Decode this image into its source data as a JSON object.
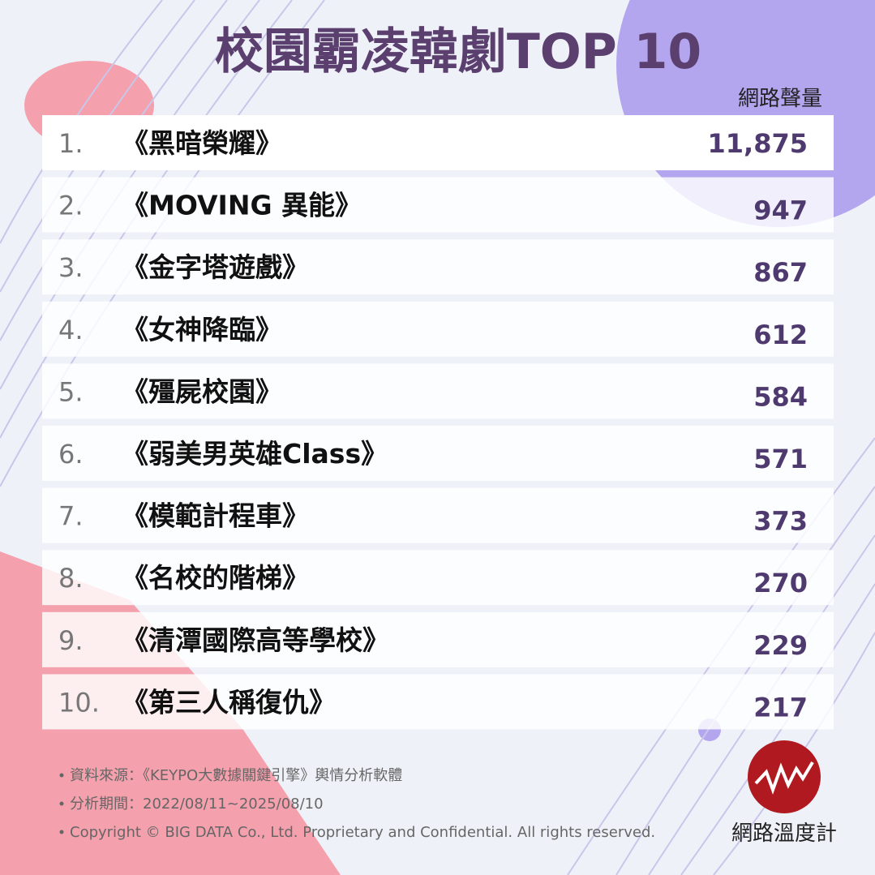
{
  "header": {
    "title": "校園霸凌韓劇TOP 10",
    "value_label": "網路聲量"
  },
  "table": {
    "rows": [
      [
        "1.",
        "《黑暗榮耀》",
        "11,875"
      ],
      [
        "2.",
        "《MOVING 異能》",
        "947"
      ],
      [
        "3.",
        "《金字塔遊戲》",
        "867"
      ],
      [
        "4.",
        "《女神降臨》",
        "612"
      ],
      [
        "5.",
        "《殭屍校園》",
        "584"
      ],
      [
        "6.",
        "《弱美男英雄Class》",
        "571"
      ],
      [
        "7.",
        "《模範計程車》",
        "373"
      ],
      [
        "8.",
        "《名校的階梯》",
        "270"
      ],
      [
        "9.",
        "《清潭國際高等學校》",
        "229"
      ],
      [
        "10.",
        "《第三人稱復仇》",
        "217"
      ]
    ]
  },
  "footer": {
    "notes": [
      "資料來源：《KEYPO大數據關鍵引擎》輿情分析軟體",
      "分析期間：2022/08/11~2025/08/10",
      "Copyright © BIG DATA Co., Ltd. Proprietary and Confidential. All rights reserved."
    ],
    "logo_text": "網路溫度計"
  }
}
